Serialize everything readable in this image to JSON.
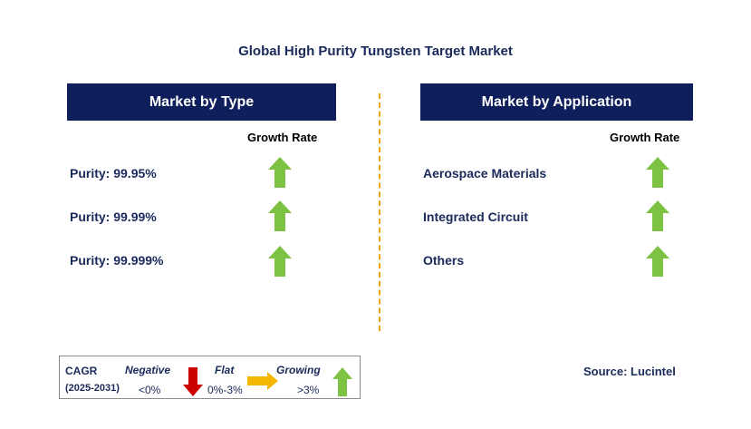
{
  "title": "Global High Purity Tungsten Target Market",
  "left_panel": {
    "header": "Market by Type",
    "growth_label": "Growth Rate",
    "rows": [
      {
        "label": "Purity: 99.95%",
        "trend": "growing"
      },
      {
        "label": "Purity: 99.99%",
        "trend": "growing"
      },
      {
        "label": "Purity: 99.999%",
        "trend": "growing"
      }
    ]
  },
  "right_panel": {
    "header": "Market by Application",
    "growth_label": "Growth Rate",
    "rows": [
      {
        "label": "Aerospace Materials",
        "trend": "growing"
      },
      {
        "label": "Integrated Circuit",
        "trend": "growing"
      },
      {
        "label": "Others",
        "trend": "growing"
      }
    ]
  },
  "legend": {
    "cagr_label": "CAGR",
    "period": "(2025-2031)",
    "negative_label": "Negative",
    "negative_range": "<0%",
    "flat_label": "Flat",
    "flat_range": "0%-3%",
    "growing_label": "Growing",
    "growing_range": ">3%"
  },
  "source": "Source: Lucintel",
  "colors": {
    "header_bg": "#0f1f5c",
    "growing_arrow": "#7dc242",
    "negative_arrow": "#cc0000",
    "flat_arrow": "#f5b800",
    "divider": "#f0a400"
  },
  "icons": {
    "growing": "up-arrow-icon",
    "negative": "down-arrow-icon",
    "flat": "right-arrow-icon"
  }
}
